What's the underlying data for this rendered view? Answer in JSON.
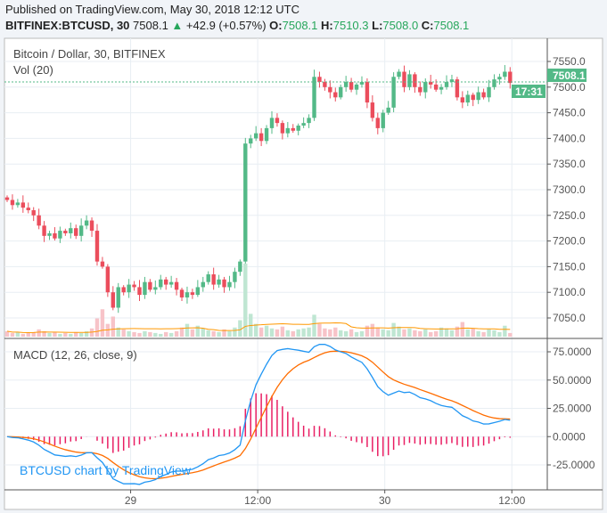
{
  "header": {
    "published": "Published on TradingView.com, May 30, 2018 12:12 UTC",
    "symbol": "BITFINEX:BTCUSD, 30",
    "last": "7508.1",
    "change": "+42.9 (+0.57%)",
    "o_label": "O:",
    "o": "7508.1",
    "h_label": "H:",
    "h": "7510.3",
    "l_label": "L:",
    "l": "7508.0",
    "c_label": "C:",
    "c": "7508.1"
  },
  "pane": {
    "title": "Bitcoin / Dollar, 30, BITFINEX",
    "vol_label": "Vol (20)",
    "macd_label": "MACD (12, 26, close, 9)",
    "watermark": "BTCUSD chart by TradingView"
  },
  "price_label": "7508.1",
  "countdown": "17:31",
  "colors": {
    "up": "#53b987",
    "down": "#eb4d5c",
    "macd": "#2196f3",
    "signal": "#ff6d00",
    "hist": "#e91e63",
    "watermark": "#2196f3"
  },
  "chart_data": {
    "type": "candlestick",
    "price_axis": {
      "ticks": [
        7550,
        7500,
        7450,
        7400,
        7350,
        7300,
        7250,
        7200,
        7150,
        7100,
        7050
      ],
      "labels": [
        "7550.0",
        "7500.0",
        "7450.0",
        "7400.0",
        "7350.0",
        "7300.0",
        "7250.0",
        "7200.0",
        "7150.0",
        "7100.0",
        "7050.0"
      ]
    },
    "macd_axis": {
      "ticks": [
        75,
        50,
        25,
        0,
        -25
      ],
      "labels": [
        "75.0000",
        "50.0000",
        "25.0000",
        "0.0000",
        "-25.0000"
      ]
    },
    "time_axis": {
      "labels": [
        "29",
        "12:00",
        "30",
        "12:00"
      ],
      "candle_index": [
        24,
        48,
        72,
        96
      ]
    },
    "close": [
      7280,
      7270,
      7275,
      7265,
      7260,
      7250,
      7230,
      7210,
      7215,
      7205,
      7220,
      7215,
      7225,
      7210,
      7230,
      7240,
      7220,
      7160,
      7150,
      7100,
      7070,
      7110,
      7100,
      7115,
      7110,
      7095,
      7120,
      7105,
      7110,
      7125,
      7115,
      7120,
      7105,
      7090,
      7100,
      7095,
      7110,
      7120,
      7135,
      7115,
      7125,
      7110,
      7120,
      7140,
      7160,
      7390,
      7400,
      7410,
      7395,
      7420,
      7440,
      7430,
      7410,
      7420,
      7415,
      7425,
      7430,
      7440,
      7520,
      7510,
      7500,
      7490,
      7480,
      7500,
      7510,
      7495,
      7505,
      7510,
      7470,
      7440,
      7420,
      7450,
      7460,
      7520,
      7530,
      7500,
      7525,
      7500,
      7490,
      7510,
      7505,
      7495,
      7500,
      7510,
      7515,
      7480,
      7470,
      7485,
      7475,
      7490,
      7480,
      7500,
      7515,
      7520,
      7530,
      7508.1
    ],
    "volume": [
      6,
      4,
      5,
      3,
      4,
      5,
      8,
      6,
      4,
      5,
      3,
      4,
      3,
      5,
      4,
      6,
      9,
      20,
      30,
      14,
      22,
      10,
      8,
      6,
      5,
      4,
      6,
      5,
      4,
      3,
      5,
      4,
      6,
      10,
      14,
      8,
      12,
      9,
      7,
      6,
      5,
      8,
      6,
      10,
      18,
      80,
      25,
      14,
      10,
      12,
      9,
      8,
      11,
      7,
      6,
      8,
      9,
      10,
      24,
      14,
      9,
      8,
      10,
      7,
      6,
      8,
      5,
      6,
      12,
      14,
      10,
      8,
      7,
      15,
      11,
      8,
      9,
      7,
      6,
      8,
      5,
      6,
      10,
      9,
      7,
      11,
      16,
      8,
      9,
      6,
      5,
      8,
      7,
      5,
      12,
      4
    ]
  }
}
